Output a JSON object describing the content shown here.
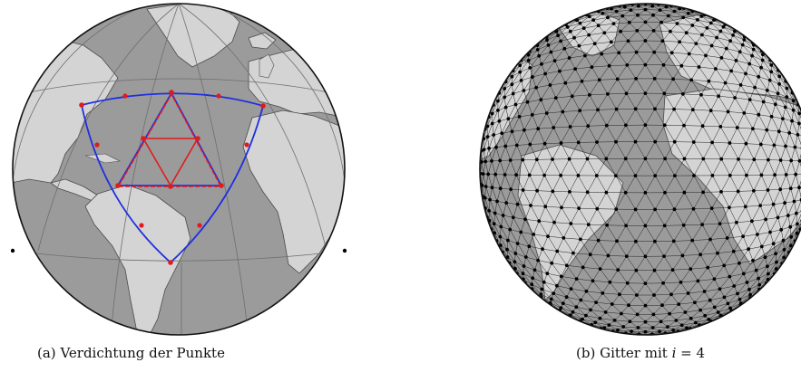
{
  "figures": [
    {
      "label": "(a)",
      "caption_text": "Verdichtung der Punkte"
    },
    {
      "label": "(b)",
      "caption_text": "Gitter mit ",
      "caption_math_var": "i",
      "caption_math_rest": " = 4"
    }
  ],
  "colors": {
    "ocean": "#9b9b9b",
    "land": "#d4d4d4",
    "coast": "#4a4a4a",
    "graticule": "#6e6e6e",
    "outer_triangle": "#1f2fe0",
    "inner_triangle": "#e01b1b",
    "midpoint_triangle": "#6a2aa0",
    "mesh_lines": "#222222",
    "mesh_nodes": "#000000"
  },
  "icons": [
    "globe-a-icon",
    "globe-b-icon"
  ]
}
